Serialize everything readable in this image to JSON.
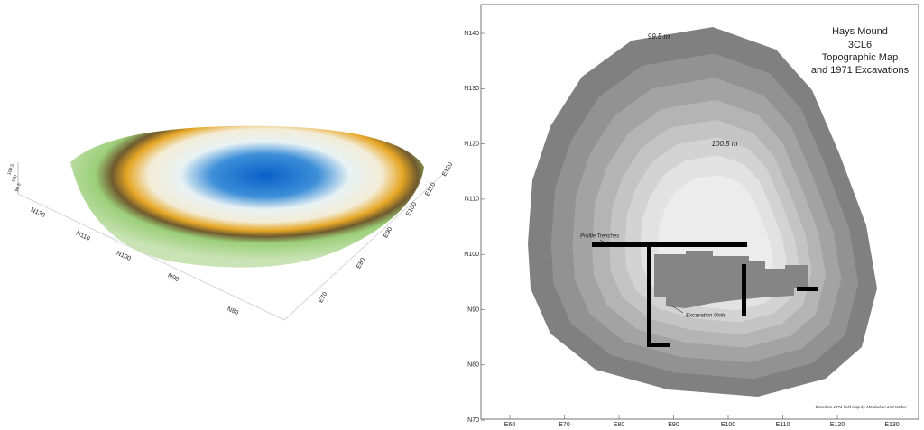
{
  "map_3d": {
    "north_labels": [
      "N130",
      "N110",
      "N100",
      "N90",
      "N80"
    ],
    "east_labels": [
      "E70",
      "E80",
      "E90",
      "E100",
      "E110",
      "E120"
    ],
    "elevation_labels": [
      "100.5",
      "100",
      "99.5"
    ]
  },
  "topo_map": {
    "title_lines": [
      "Hays Mound",
      "3CL6",
      "Topographic Map",
      "and 1971 Excavations"
    ],
    "contour_labels": [
      "99.5 m",
      "100.5 m"
    ],
    "annotations": [
      "Profile Trenches",
      "Excavation Units"
    ],
    "credit": "based on 1971 field map by McClurkan and Weber",
    "north_labels": [
      "N140",
      "N130",
      "N120",
      "N110",
      "N100",
      "N90",
      "N80",
      "N70"
    ],
    "east_labels": [
      "E60",
      "E70",
      "E80",
      "E90",
      "E100",
      "E110",
      "E120",
      "E130"
    ]
  }
}
